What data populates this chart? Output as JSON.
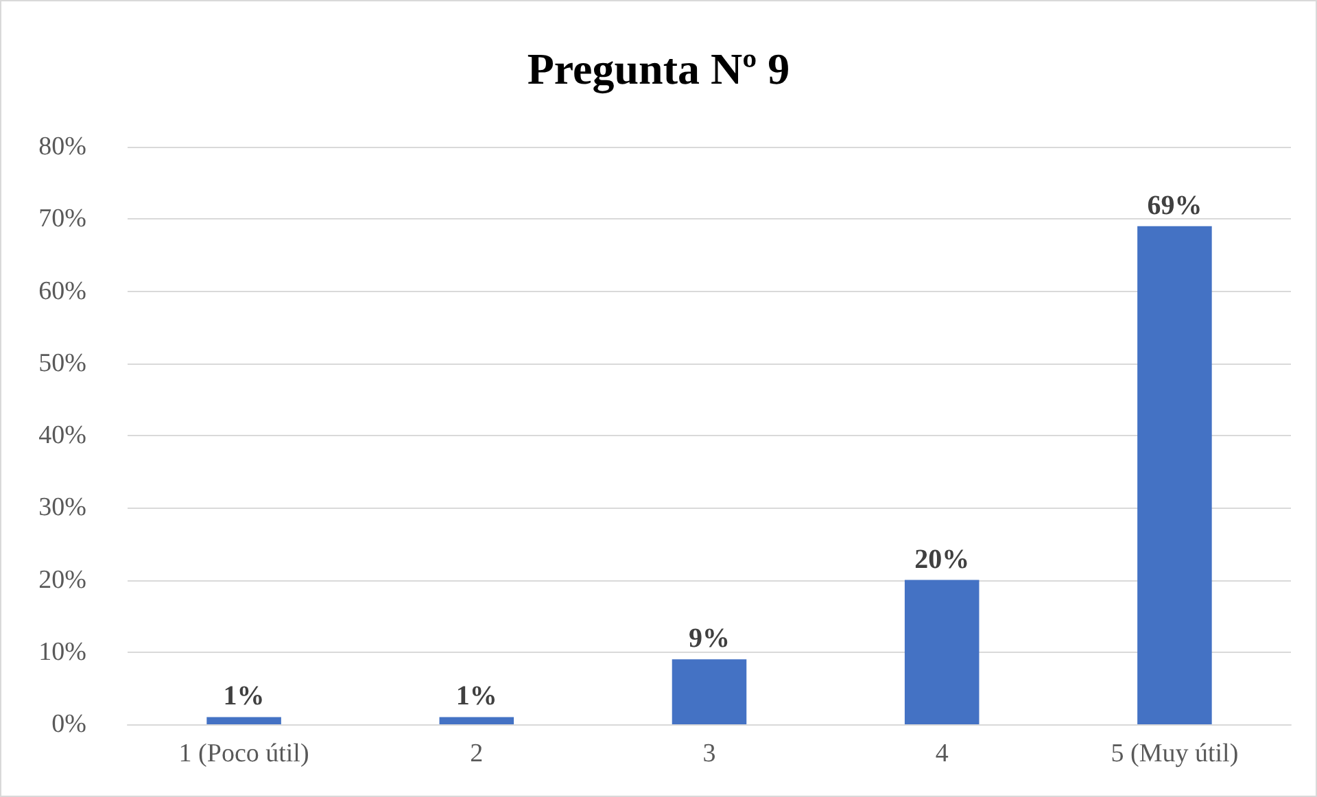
{
  "chart_data": {
    "type": "bar",
    "title": "Pregunta Nº 9",
    "categories": [
      "1 (Poco útil)",
      "2",
      "3",
      "4",
      "5 (Muy útil)"
    ],
    "values": [
      1,
      1,
      9,
      20,
      69
    ],
    "value_labels": [
      "1%",
      "1%",
      "9%",
      "20%",
      "69%"
    ],
    "color": "#4472c4",
    "ylim": [
      0,
      80
    ],
    "yticks": [
      {
        "value": 0,
        "label": "0%"
      },
      {
        "value": 10,
        "label": "10%"
      },
      {
        "value": 20,
        "label": "20%"
      },
      {
        "value": 30,
        "label": "30%"
      },
      {
        "value": 40,
        "label": "40%"
      },
      {
        "value": 50,
        "label": "50%"
      },
      {
        "value": 60,
        "label": "60%"
      },
      {
        "value": 70,
        "label": "70%"
      },
      {
        "value": 80,
        "label": "80%"
      }
    ],
    "grid": "y"
  }
}
